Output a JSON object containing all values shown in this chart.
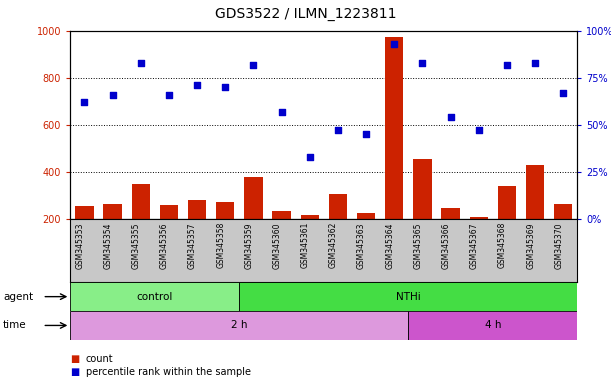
{
  "title": "GDS3522 / ILMN_1223811",
  "samples": [
    "GSM345353",
    "GSM345354",
    "GSM345355",
    "GSM345356",
    "GSM345357",
    "GSM345358",
    "GSM345359",
    "GSM345360",
    "GSM345361",
    "GSM345362",
    "GSM345363",
    "GSM345364",
    "GSM345365",
    "GSM345366",
    "GSM345367",
    "GSM345368",
    "GSM345369",
    "GSM345370"
  ],
  "counts": [
    255,
    265,
    350,
    260,
    280,
    270,
    380,
    235,
    215,
    305,
    225,
    975,
    455,
    248,
    210,
    340,
    430,
    262
  ],
  "percentile": [
    62,
    66,
    83,
    66,
    71,
    70,
    82,
    57,
    33,
    47,
    45,
    93,
    83,
    54,
    47,
    82,
    83,
    67
  ],
  "left_ylim": [
    200,
    1000
  ],
  "right_ylim": [
    0,
    100
  ],
  "left_yticks": [
    200,
    400,
    600,
    800,
    1000
  ],
  "right_yticks": [
    0,
    25,
    50,
    75,
    100
  ],
  "bar_color": "#CC2200",
  "dot_color": "#0000CC",
  "bg_color": "#C8C8C8",
  "agent_groups": [
    {
      "label": "control",
      "start": 0,
      "end": 6,
      "color": "#88EE88"
    },
    {
      "label": "NTHi",
      "start": 6,
      "end": 18,
      "color": "#44DD44"
    }
  ],
  "time_groups": [
    {
      "label": "2 h",
      "start": 0,
      "end": 12,
      "color": "#DD99DD"
    },
    {
      "label": "4 h",
      "start": 12,
      "end": 18,
      "color": "#CC55CC"
    }
  ],
  "legend_count_label": "count",
  "legend_pct_label": "percentile rank within the sample",
  "agent_label": "agent",
  "time_label": "time",
  "title_fontsize": 10,
  "tick_fontsize": 7,
  "bar_width": 0.65,
  "fig_width": 6.11,
  "fig_height": 3.84,
  "fig_dpi": 100
}
